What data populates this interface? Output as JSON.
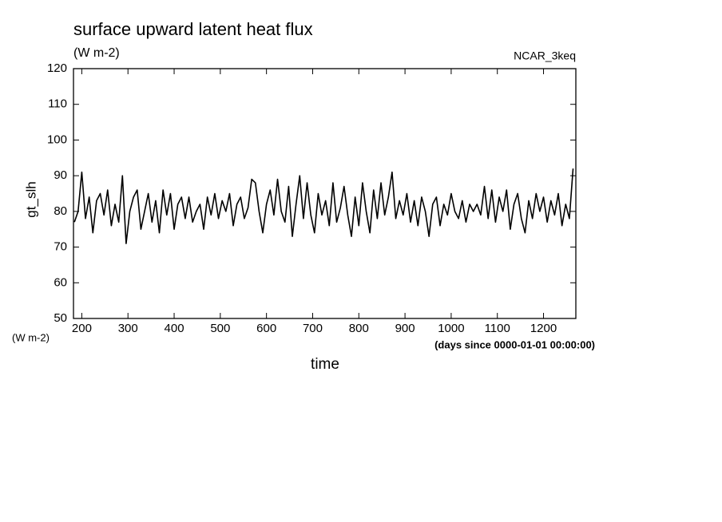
{
  "chart_data": {
    "type": "line",
    "title": "surface upward latent heat flux",
    "subtitle": "(W m-2)",
    "source": "NCAR_3keq",
    "y_label": "gt_slh",
    "y_unit": "(W m-2)",
    "x_label": "time",
    "x_unit": "(days since 0000-01-01 00:00:00)",
    "x": [
      184,
      192,
      200,
      208,
      216,
      224,
      232,
      240,
      248,
      256,
      264,
      272,
      280,
      288,
      296,
      304,
      312,
      320,
      328,
      336,
      344,
      352,
      360,
      368,
      376,
      384,
      392,
      400,
      408,
      416,
      424,
      432,
      440,
      448,
      456,
      464,
      472,
      480,
      488,
      496,
      504,
      512,
      520,
      528,
      536,
      544,
      552,
      560,
      568,
      576,
      584,
      592,
      600,
      608,
      616,
      624,
      632,
      640,
      648,
      656,
      664,
      672,
      680,
      688,
      696,
      704,
      712,
      720,
      728,
      736,
      744,
      752,
      760,
      768,
      776,
      784,
      792,
      800,
      808,
      816,
      824,
      832,
      840,
      848,
      856,
      864,
      872,
      880,
      888,
      896,
      904,
      912,
      920,
      928,
      936,
      944,
      952,
      960,
      968,
      976,
      984,
      992,
      1000,
      1008,
      1016,
      1024,
      1032,
      1040,
      1048,
      1056,
      1064,
      1072,
      1080,
      1088,
      1096,
      1104,
      1112,
      1120,
      1128,
      1136,
      1144,
      1152,
      1160,
      1168,
      1176,
      1184,
      1192,
      1200,
      1208,
      1216,
      1224,
      1232,
      1240,
      1248,
      1256,
      1264
    ],
    "series": [
      {
        "name": "gt_slh",
        "color": "#000000",
        "values": [
          77,
          80,
          91,
          78,
          84,
          74,
          83,
          85,
          79,
          86,
          76,
          82,
          77,
          90,
          71,
          80,
          84,
          86,
          75,
          80,
          85,
          77,
          83,
          74,
          86,
          79,
          85,
          75,
          82,
          84,
          78,
          84,
          77,
          80,
          82,
          75,
          84,
          79,
          85,
          78,
          83,
          80,
          85,
          76,
          82,
          84,
          78,
          81,
          89,
          88,
          80,
          74,
          82,
          86,
          79,
          89,
          80,
          77,
          87,
          73,
          82,
          90,
          78,
          88,
          79,
          74,
          85,
          79,
          83,
          76,
          88,
          77,
          81,
          87,
          79,
          73,
          84,
          76,
          88,
          80,
          74,
          86,
          78,
          88,
          79,
          84,
          91,
          78,
          83,
          79,
          85,
          77,
          83,
          76,
          84,
          80,
          73,
          82,
          84,
          76,
          82,
          79,
          85,
          80,
          78,
          83,
          77,
          82,
          80,
          82,
          79,
          87,
          78,
          86,
          77,
          84,
          80,
          86,
          75,
          82,
          85,
          78,
          74,
          83,
          78,
          85,
          80,
          84,
          77,
          83,
          79,
          85,
          76,
          82,
          78,
          92
        ]
      }
    ],
    "xlim": [
      182,
      1270
    ],
    "ylim": [
      50,
      120
    ],
    "xticks": [
      200,
      300,
      400,
      500,
      600,
      700,
      800,
      900,
      1000,
      1100,
      1200
    ],
    "yticks": [
      50,
      60,
      70,
      80,
      90,
      100,
      110,
      120
    ],
    "grid": false
  }
}
